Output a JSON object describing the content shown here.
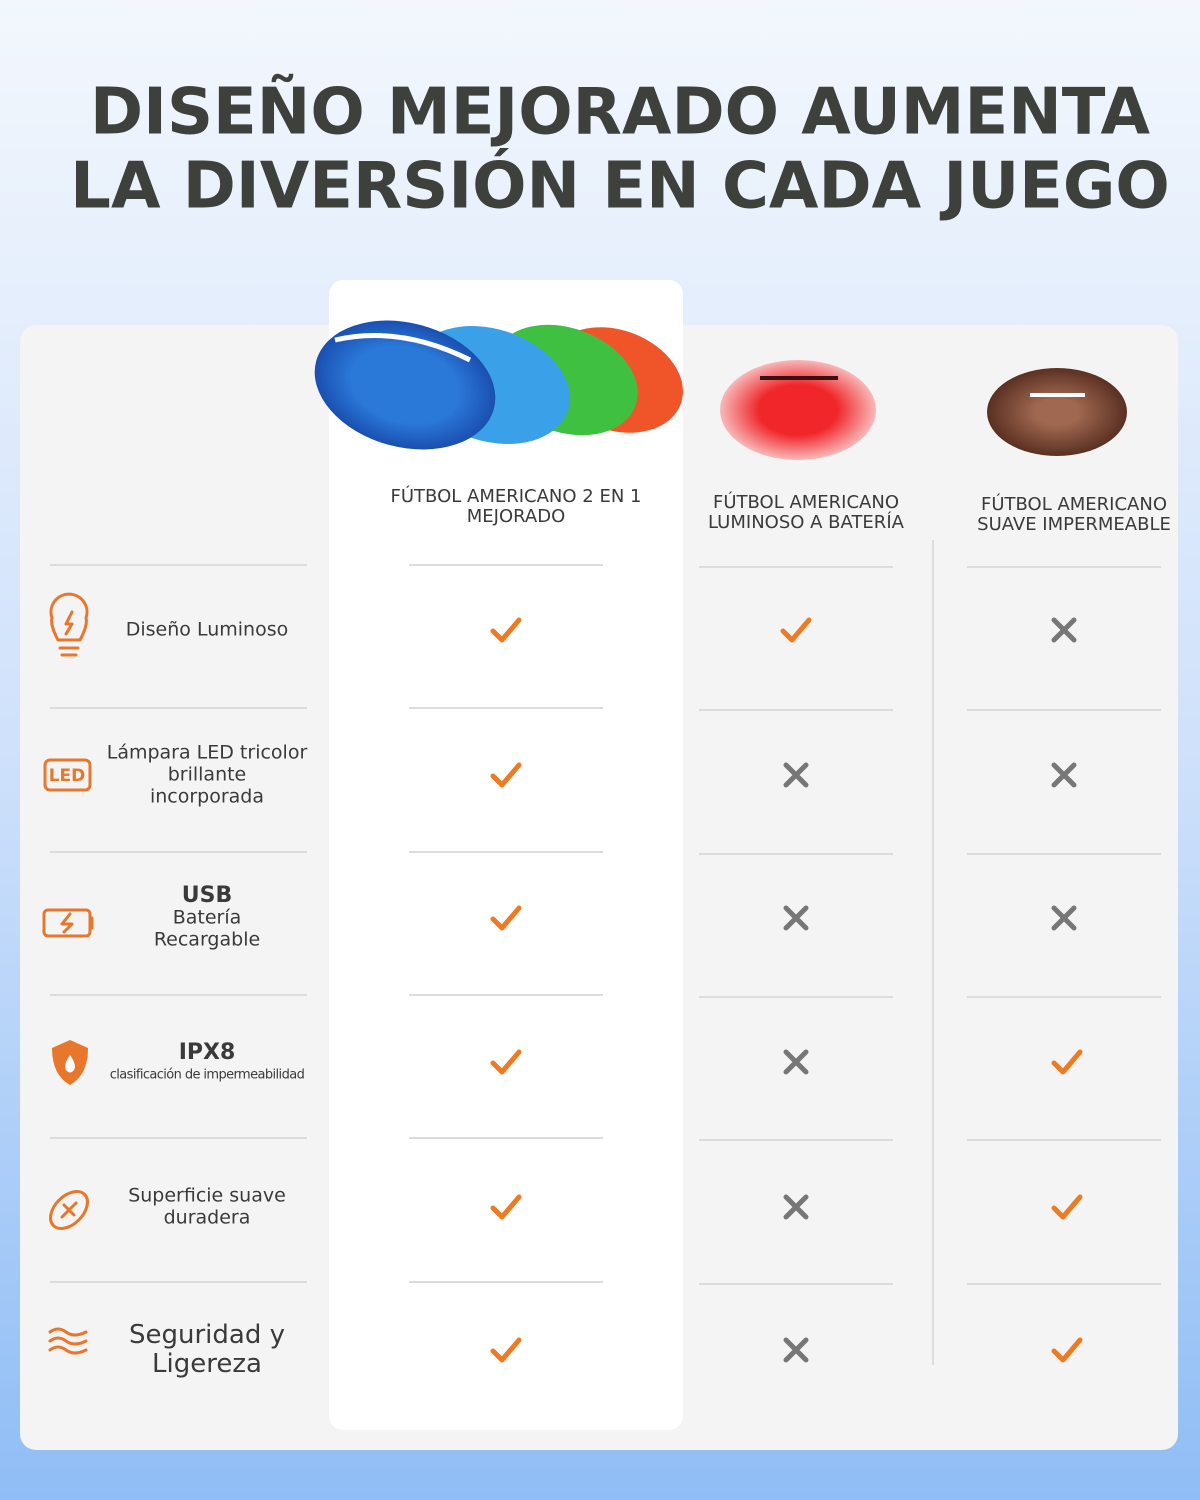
{
  "title": [
    "DISEÑO MEJORADO AUMENTA",
    "LA DIVERSIÓN EN CADA JUEGO"
  ],
  "columns": [
    {
      "lines": [
        "FÚTBOL AMERICANO 2 EN 1",
        "MEJORADO"
      ]
    },
    {
      "lines": [
        "FÚTBOL AMERICANO",
        "LUMINOSO A BATERÍA"
      ]
    },
    {
      "lines": [
        "FÚTBOL AMERICANO",
        "SUAVE IMPERMEABLE"
      ]
    }
  ],
  "rows": [
    {
      "lines": [
        "Diseño Luminoso"
      ],
      "values": [
        true,
        true,
        false
      ]
    },
    {
      "icon_label": "LED",
      "lines": [
        "Lámpara LED tricolor",
        "brillante",
        "incorporada"
      ],
      "values": [
        true,
        false,
        false
      ]
    },
    {
      "heading": "USB",
      "lines": [
        "Batería",
        "Recargable"
      ],
      "values": [
        true,
        false,
        false
      ]
    },
    {
      "heading": "IPX8",
      "lines": [
        "clasificación de impermeabilidad"
      ],
      "values": [
        true,
        false,
        true
      ]
    },
    {
      "lines": [
        "Superficie suave",
        "duradera"
      ],
      "values": [
        true,
        false,
        true
      ]
    },
    {
      "lines": [
        "Seguridad y",
        "Ligereza"
      ],
      "values": [
        true,
        false,
        true
      ]
    }
  ]
}
